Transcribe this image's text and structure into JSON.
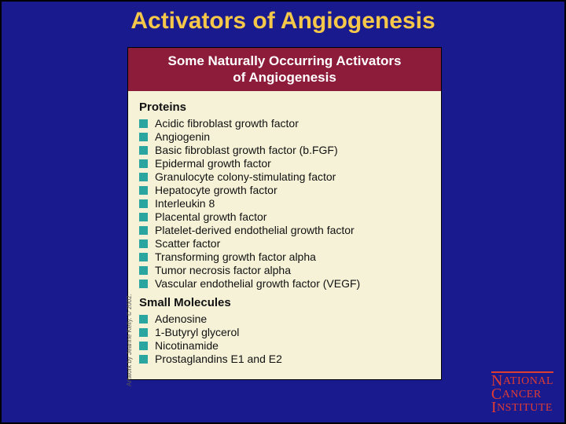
{
  "colors": {
    "slide_bg": "#1a1a8f",
    "slide_border": "#000000",
    "title_color": "#f5c84a",
    "card_header_bg": "#8d1c3a",
    "card_header_text": "#ffffff",
    "card_body_bg": "#f6f2d8",
    "body_text": "#111111",
    "bullet_color": "#2aa5a0",
    "logo_color": "#e03c31",
    "logo_divider": "#e03c31"
  },
  "typography": {
    "title_fontsize": 30,
    "card_header_fontsize": 17,
    "section_heading_fontsize": 15,
    "item_fontsize": 14,
    "logo_fontsize": 14
  },
  "title": "Activators of Angiogenesis",
  "card": {
    "header_line1": "Some Naturally Occurring Activators",
    "header_line2": "of Angiogenesis",
    "sections": [
      {
        "heading": "Proteins",
        "items": [
          "Acidic fibroblast growth factor",
          "Angiogenin",
          "Basic fibroblast growth factor (b.FGF)",
          "Epidermal growth factor",
          "Granulocyte colony-stimulating factor",
          "Hepatocyte growth factor",
          "Interleukin 8",
          "Placental growth factor",
          "Platelet-derived endothelial growth factor",
          "Scatter factor",
          "Transforming growth factor alpha",
          "Tumor necrosis factor alpha",
          "Vascular endothelial growth factor (VEGF)"
        ]
      },
      {
        "heading": "Small Molecules",
        "items": [
          "Adenosine",
          "1-Butyryl glycerol",
          "Nicotinamide",
          "Prostaglandins E1 and E2"
        ]
      }
    ]
  },
  "credit": "Artwork by Jeanne Kelly. © 2002.",
  "logo": {
    "line1_a": "N",
    "line1_b": "ATIONAL",
    "line2_a": "C",
    "line2_b": "ANCER",
    "line3_a": "I",
    "line3_b": "NSTITUTE"
  }
}
